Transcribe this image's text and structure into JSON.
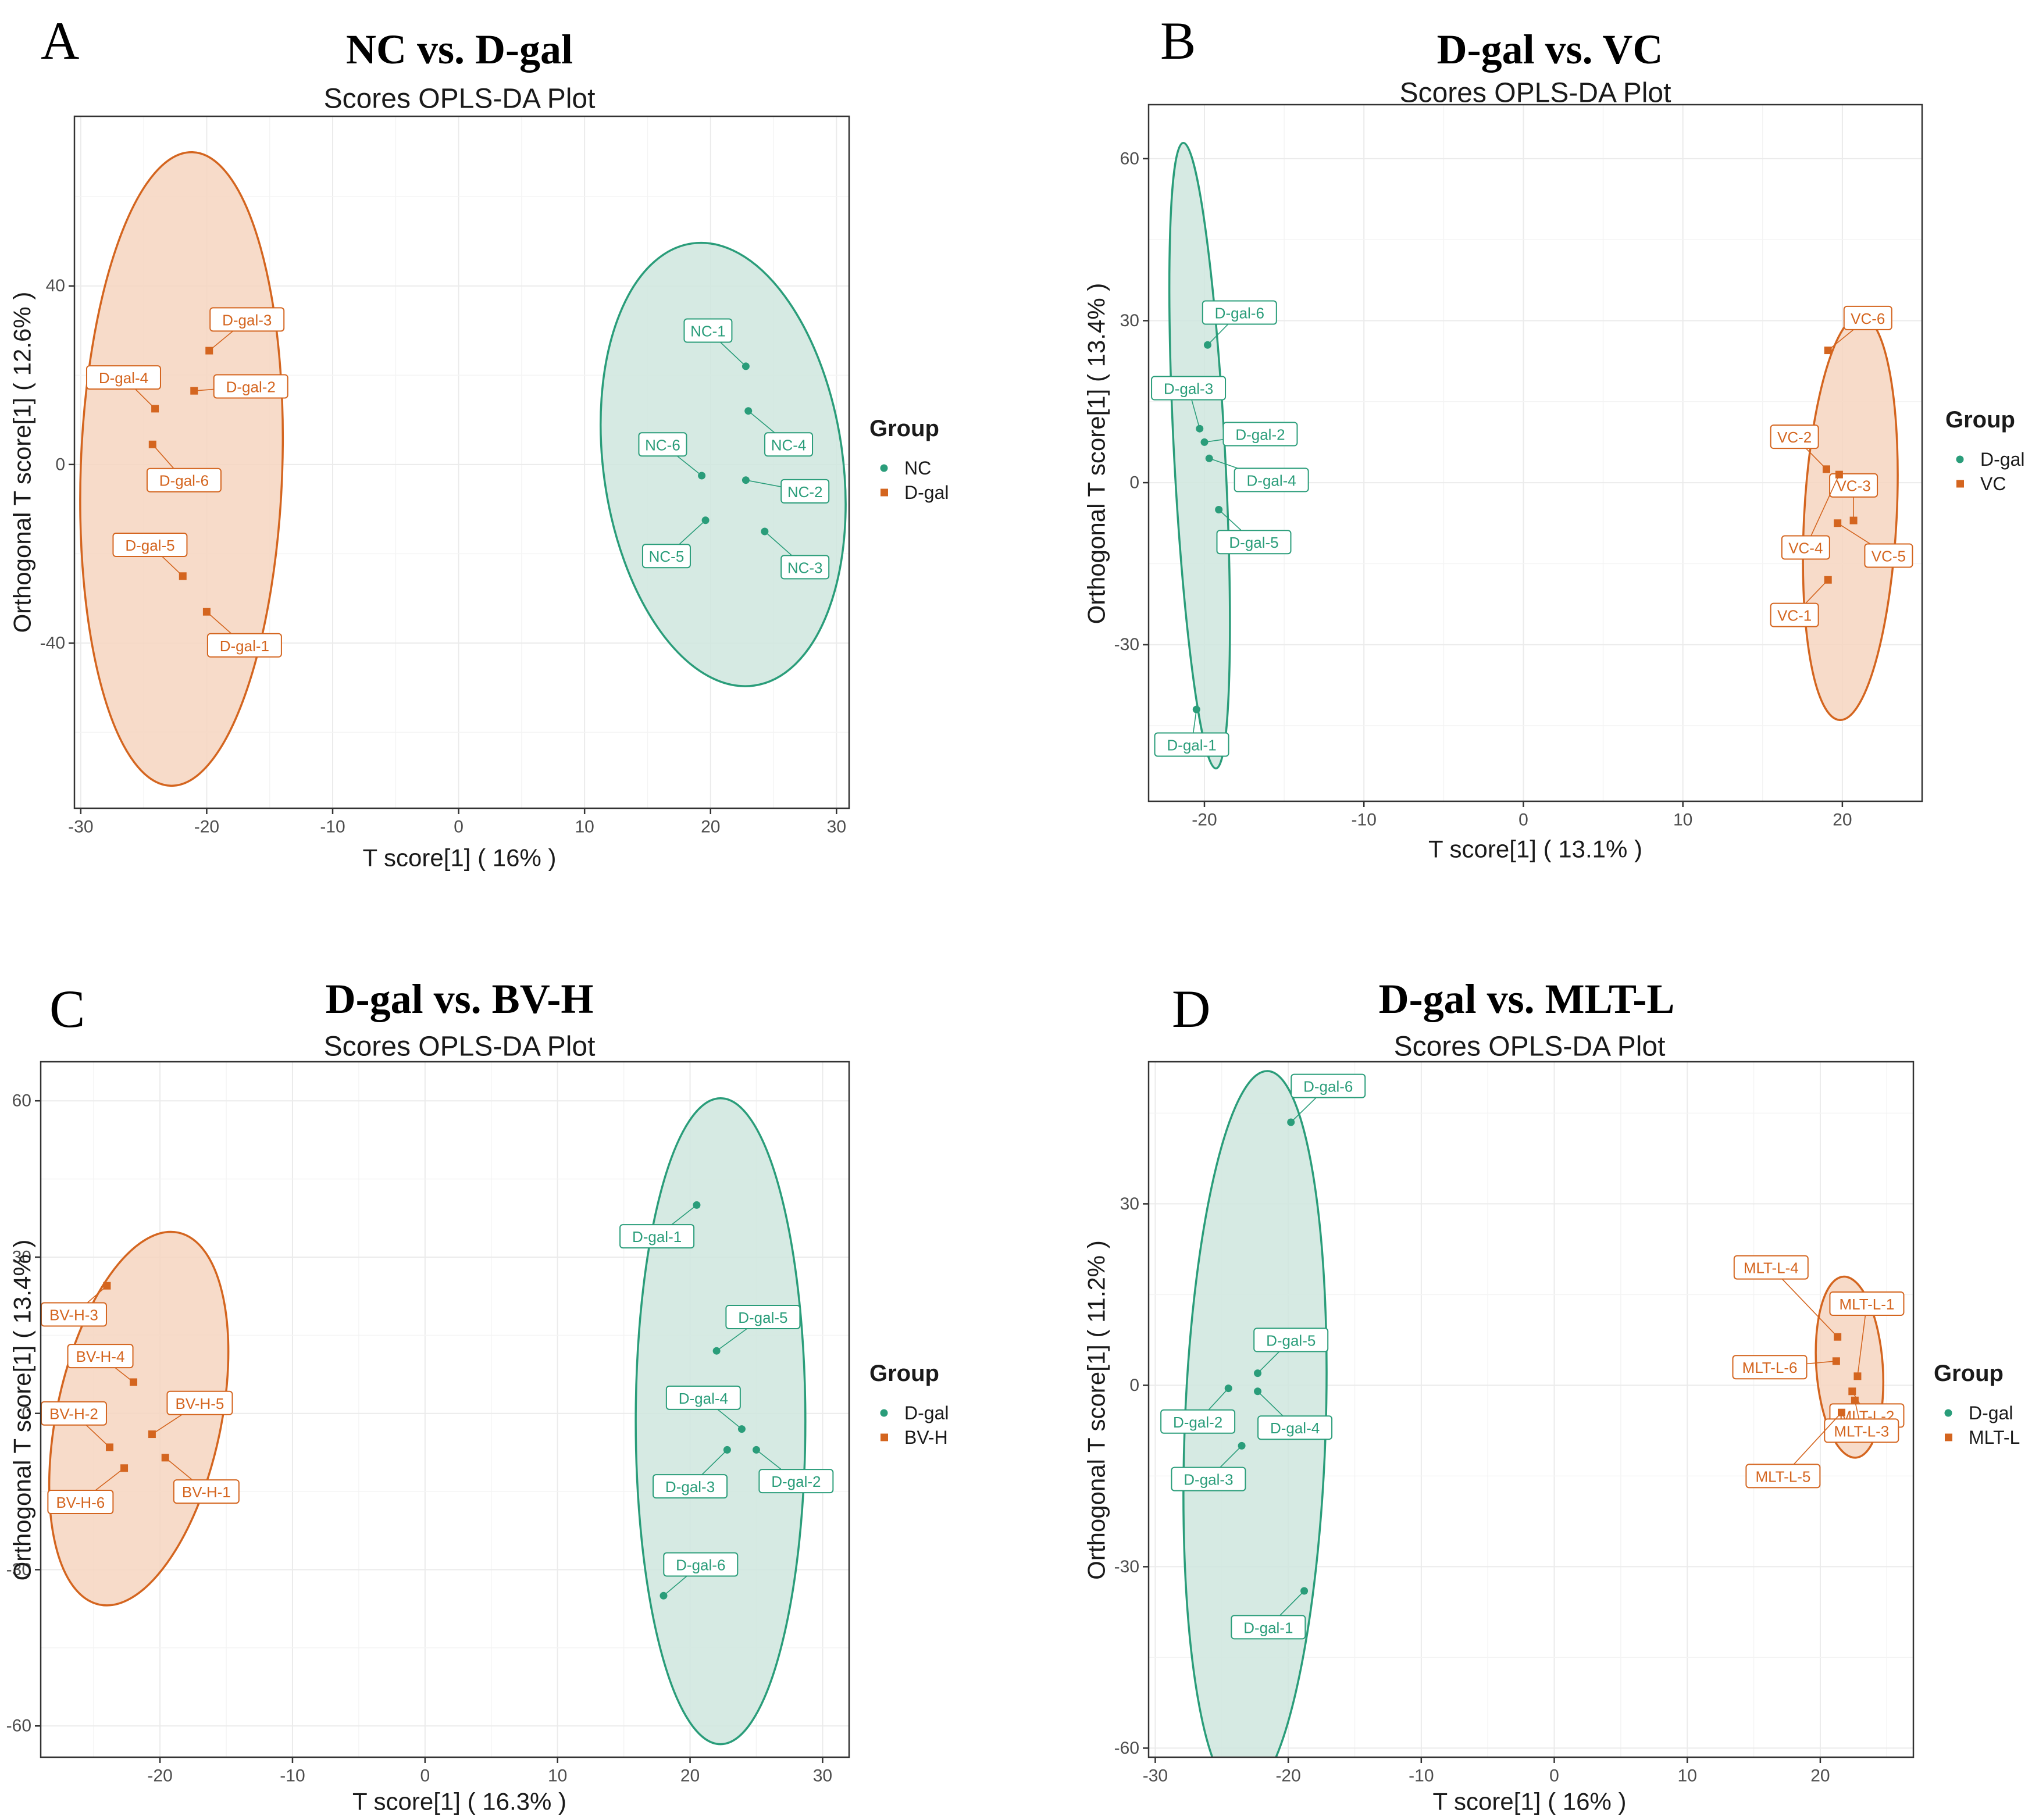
{
  "colors": {
    "green": "#2a9d7a",
    "orange": "#d4651f",
    "green_fill": "#cfe6de",
    "orange_fill": "#f6d5bf"
  },
  "legend_title": "Group",
  "chart_data": [
    {
      "type": "scatter",
      "panel_letter": "A",
      "title": "NC vs. D-gal",
      "subtitle": "Scores OPLS-DA Plot",
      "xlabel": "T score[1] ( 16% )",
      "ylabel": "Orthogonal T score[1] ( 12.6% )",
      "xlim": [
        -30.5,
        31
      ],
      "ylim": [
        -77,
        78
      ],
      "xticks": [
        -30,
        -20,
        -10,
        0,
        10,
        20,
        30
      ],
      "yticks": [
        -40,
        0,
        40
      ],
      "legend": [
        "NC",
        "D-gal"
      ],
      "series": [
        {
          "name": "NC",
          "color": "green",
          "ellipse": {
            "center": [
              21,
              0
            ],
            "radii": [
              9.5,
              50
            ],
            "tilt_deg": -8
          },
          "points": [
            {
              "label": "NC-1",
              "x": 22.8,
              "y": 22,
              "lx": 19.8,
              "ly": 30
            },
            {
              "label": "NC-2",
              "x": 22.8,
              "y": -3.5,
              "lx": 27.5,
              "ly": -6
            },
            {
              "label": "NC-3",
              "x": 24.3,
              "y": -15,
              "lx": 27.5,
              "ly": -23
            },
            {
              "label": "NC-4",
              "x": 23,
              "y": 12,
              "lx": 26.2,
              "ly": 4.5
            },
            {
              "label": "NC-5",
              "x": 19.6,
              "y": -12.5,
              "lx": 16.5,
              "ly": -20.5
            },
            {
              "label": "NC-6",
              "x": 19.3,
              "y": -2.5,
              "lx": 16.2,
              "ly": 4.5
            }
          ]
        },
        {
          "name": "D-gal",
          "color": "orange",
          "ellipse": {
            "center": [
              -22,
              -1
            ],
            "radii": [
              8,
              71
            ],
            "tilt_deg": 2
          },
          "points": [
            {
              "label": "D-gal-1",
              "x": -20,
              "y": -33,
              "lx": -17,
              "ly": -40.5
            },
            {
              "label": "D-gal-2",
              "x": -21,
              "y": 16.5,
              "lx": -16.5,
              "ly": 17.5
            },
            {
              "label": "D-gal-3",
              "x": -19.8,
              "y": 25.5,
              "lx": -16.8,
              "ly": 32.5
            },
            {
              "label": "D-gal-4",
              "x": -24.1,
              "y": 12.5,
              "lx": -26.6,
              "ly": 19.5
            },
            {
              "label": "D-gal-5",
              "x": -21.9,
              "y": -25,
              "lx": -24.5,
              "ly": -18
            },
            {
              "label": "D-gal-6",
              "x": -24.3,
              "y": 4.5,
              "lx": -21.8,
              "ly": -3.5
            }
          ]
        }
      ]
    },
    {
      "type": "scatter",
      "panel_letter": "B",
      "title": "D-gal vs. VC",
      "subtitle": "Scores OPLS-DA Plot",
      "xlabel": "T score[1] ( 13.1% )",
      "ylabel": "Orthogonal T score[1] ( 13.4% )",
      "xlim": [
        -23.5,
        25
      ],
      "ylim": [
        -59,
        70
      ],
      "xticks": [
        -20,
        -10,
        0,
        10,
        20
      ],
      "yticks": [
        -30,
        0,
        30,
        60
      ],
      "legend": [
        "D-gal",
        "VC"
      ],
      "series": [
        {
          "name": "D-gal",
          "color": "green",
          "ellipse": {
            "center": [
              -20.3,
              5
            ],
            "radii": [
              1.6,
              58
            ],
            "tilt_deg": -3
          },
          "points": [
            {
              "label": "D-gal-1",
              "x": -20.5,
              "y": -42,
              "lx": -20.8,
              "ly": -48.5
            },
            {
              "label": "D-gal-2",
              "x": -20,
              "y": 7.5,
              "lx": -16.5,
              "ly": 9
            },
            {
              "label": "D-gal-3",
              "x": -20.3,
              "y": 10,
              "lx": -21,
              "ly": 17.5
            },
            {
              "label": "D-gal-4",
              "x": -19.7,
              "y": 4.5,
              "lx": -15.8,
              "ly": 0.5
            },
            {
              "label": "D-gal-5",
              "x": -19.1,
              "y": -5,
              "lx": -16.9,
              "ly": -11
            },
            {
              "label": "D-gal-6",
              "x": -19.8,
              "y": 25.5,
              "lx": -17.8,
              "ly": 31.5
            }
          ]
        },
        {
          "name": "VC",
          "color": "orange",
          "ellipse": {
            "center": [
              20.5,
              -6.5
            ],
            "radii": [
              2.9,
              37.5
            ],
            "tilt_deg": 3
          },
          "points": [
            {
              "label": "VC-1",
              "x": 19.1,
              "y": -18,
              "lx": 17,
              "ly": -24.5
            },
            {
              "label": "VC-2",
              "x": 19,
              "y": 2.5,
              "lx": 17,
              "ly": 8.5
            },
            {
              "label": "VC-3",
              "x": 20.7,
              "y": -7,
              "lx": 20.7,
              "ly": -0.5
            },
            {
              "label": "VC-4",
              "x": 19.8,
              "y": 1.5,
              "lx": 17.7,
              "ly": -12
            },
            {
              "label": "VC-5",
              "x": 19.7,
              "y": -7.5,
              "lx": 22.9,
              "ly": -13.5
            },
            {
              "label": "VC-6",
              "x": 19.1,
              "y": 24.5,
              "lx": 21.6,
              "ly": 30.5
            }
          ]
        }
      ]
    },
    {
      "type": "scatter",
      "panel_letter": "C",
      "title": "D-gal vs. BV-H",
      "subtitle": "Scores OPLS-DA Plot",
      "xlabel": "T score[1] ( 16.3% )",
      "ylabel": "Orthogonal T score[1] ( 13.4% )",
      "xlim": [
        -29,
        32
      ],
      "ylim": [
        -66,
        67.5
      ],
      "xticks": [
        -20,
        -10,
        0,
        10,
        20,
        30
      ],
      "yticks": [
        -60,
        -30,
        0,
        30,
        60
      ],
      "legend": [
        "D-gal",
        "BV-H"
      ],
      "series": [
        {
          "name": "D-gal",
          "color": "green",
          "ellipse": {
            "center": [
              22.3,
              -1.5
            ],
            "radii": [
              6.4,
              62
            ],
            "tilt_deg": 0
          },
          "points": [
            {
              "label": "D-gal-1",
              "x": 20.5,
              "y": 40,
              "lx": 17.5,
              "ly": 34
            },
            {
              "label": "D-gal-2",
              "x": 25,
              "y": -7,
              "lx": 28,
              "ly": -13
            },
            {
              "label": "D-gal-3",
              "x": 22.8,
              "y": -7,
              "lx": 20,
              "ly": -14
            },
            {
              "label": "D-gal-4",
              "x": 23.9,
              "y": -3,
              "lx": 21,
              "ly": 3
            },
            {
              "label": "D-gal-5",
              "x": 22,
              "y": 12,
              "lx": 25.5,
              "ly": 18.5
            },
            {
              "label": "D-gal-6",
              "x": 18,
              "y": -35,
              "lx": 20.8,
              "ly": -29
            }
          ]
        },
        {
          "name": "BV-H",
          "color": "orange",
          "ellipse": {
            "center": [
              -21.6,
              -1
            ],
            "radii": [
              6.2,
              36.5
            ],
            "tilt_deg": 12
          },
          "points": [
            {
              "label": "BV-H-1",
              "x": -19.6,
              "y": -8.5,
              "lx": -16.5,
              "ly": -15
            },
            {
              "label": "BV-H-2",
              "x": -23.8,
              "y": -6.5,
              "lx": -26.5,
              "ly": 0
            },
            {
              "label": "BV-H-3",
              "x": -24,
              "y": 24.5,
              "lx": -26.5,
              "ly": 19
            },
            {
              "label": "BV-H-4",
              "x": -22,
              "y": 6,
              "lx": -24.5,
              "ly": 11
            },
            {
              "label": "BV-H-5",
              "x": -20.6,
              "y": -4,
              "lx": -17,
              "ly": 2
            },
            {
              "label": "BV-H-6",
              "x": -22.7,
              "y": -10.5,
              "lx": -26,
              "ly": -17
            }
          ]
        }
      ]
    },
    {
      "type": "scatter",
      "panel_letter": "D",
      "title": "D-gal vs. MLT-L",
      "subtitle": "Scores OPLS-DA Plot",
      "xlabel": "T score[1] ( 16% )",
      "ylabel": "Orthogonal T score[1] ( 11.2% )",
      "xlim": [
        -30.5,
        27
      ],
      "ylim": [
        -61.5,
        53.5
      ],
      "xticks": [
        -30,
        -20,
        -10,
        0,
        10,
        20
      ],
      "yticks": [
        -60,
        -30,
        0,
        30
      ],
      "legend": [
        "D-gal",
        "MLT-L"
      ],
      "series": [
        {
          "name": "D-gal",
          "color": "green",
          "ellipse": {
            "center": [
              -22.5,
              -8
            ],
            "radii": [
              5.3,
              60
            ],
            "tilt_deg": 2
          },
          "points": [
            {
              "label": "D-gal-1",
              "x": -18.8,
              "y": -34,
              "lx": -21.5,
              "ly": -40
            },
            {
              "label": "D-gal-2",
              "x": -24.5,
              "y": -0.5,
              "lx": -26.8,
              "ly": -6
            },
            {
              "label": "D-gal-3",
              "x": -23.5,
              "y": -10,
              "lx": -26,
              "ly": -15.5
            },
            {
              "label": "D-gal-4",
              "x": -22.3,
              "y": -1,
              "lx": -19.5,
              "ly": -7
            },
            {
              "label": "D-gal-5",
              "x": -22.3,
              "y": 2,
              "lx": -19.8,
              "ly": 7.5
            },
            {
              "label": "D-gal-6",
              "x": -19.8,
              "y": 43.5,
              "lx": -17,
              "ly": 49.5
            }
          ]
        },
        {
          "name": "MLT-L",
          "color": "orange",
          "ellipse": {
            "center": [
              22.2,
              3
            ],
            "radii": [
              2.5,
              15
            ],
            "tilt_deg": -4
          },
          "points": [
            {
              "label": "MLT-L-1",
              "x": 22.8,
              "y": 1.5,
              "lx": 23.5,
              "ly": 13.5
            },
            {
              "label": "MLT-L-2",
              "x": 22.4,
              "y": -1,
              "lx": 23.5,
              "ly": -5
            },
            {
              "label": "MLT-L-3",
              "x": 22.6,
              "y": -2.5,
              "lx": 23.1,
              "ly": -7.5
            },
            {
              "label": "MLT-L-4",
              "x": 21.3,
              "y": 8,
              "lx": 16.3,
              "ly": 19.5
            },
            {
              "label": "MLT-L-5",
              "x": 21.6,
              "y": -4.5,
              "lx": 17.2,
              "ly": -15
            },
            {
              "label": "MLT-L-6",
              "x": 21.2,
              "y": 4,
              "lx": 16.2,
              "ly": 3
            }
          ]
        }
      ]
    }
  ]
}
